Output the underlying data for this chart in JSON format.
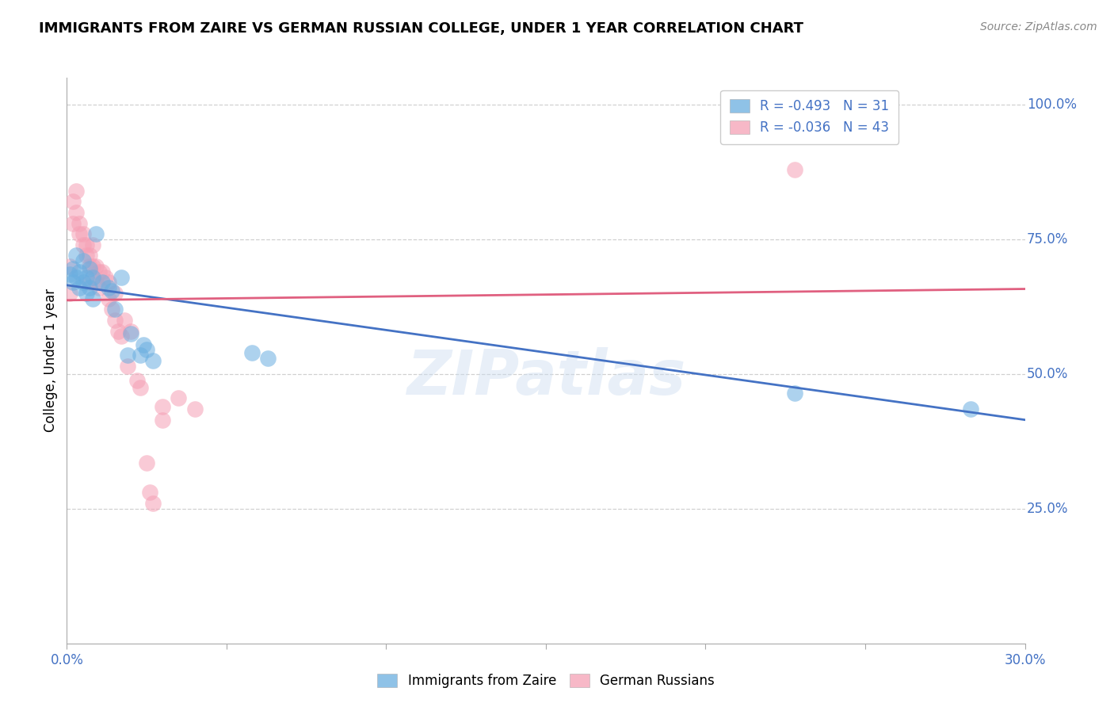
{
  "title": "IMMIGRANTS FROM ZAIRE VS GERMAN RUSSIAN COLLEGE, UNDER 1 YEAR CORRELATION CHART",
  "source": "Source: ZipAtlas.com",
  "ylabel": "College, Under 1 year",
  "right_yticks": [
    "100.0%",
    "75.0%",
    "50.0%",
    "25.0%"
  ],
  "right_ytick_vals": [
    1.0,
    0.75,
    0.5,
    0.25
  ],
  "legend_entries": [
    {
      "label": "R = -0.493   N = 31",
      "color": "#7eb6e8"
    },
    {
      "label": "R = -0.036   N = 43",
      "color": "#f4a0b4"
    }
  ],
  "legend_series": [
    "Immigrants from Zaire",
    "German Russians"
  ],
  "xmin": 0.0,
  "xmax": 0.3,
  "ymin": 0.0,
  "ymax": 1.05,
  "blue_line": {
    "x0": 0.0,
    "y0": 0.665,
    "x1": 0.3,
    "y1": 0.415
  },
  "pink_line": {
    "x0": 0.0,
    "y0": 0.637,
    "x1": 0.3,
    "y1": 0.658
  },
  "zaire_points": [
    [
      0.001,
      0.685
    ],
    [
      0.002,
      0.695
    ],
    [
      0.002,
      0.67
    ],
    [
      0.003,
      0.72
    ],
    [
      0.003,
      0.68
    ],
    [
      0.004,
      0.69
    ],
    [
      0.004,
      0.66
    ],
    [
      0.005,
      0.71
    ],
    [
      0.005,
      0.67
    ],
    [
      0.006,
      0.68
    ],
    [
      0.006,
      0.65
    ],
    [
      0.007,
      0.695
    ],
    [
      0.007,
      0.66
    ],
    [
      0.008,
      0.68
    ],
    [
      0.008,
      0.64
    ],
    [
      0.009,
      0.76
    ],
    [
      0.011,
      0.67
    ],
    [
      0.013,
      0.66
    ],
    [
      0.014,
      0.655
    ],
    [
      0.015,
      0.62
    ],
    [
      0.017,
      0.68
    ],
    [
      0.019,
      0.535
    ],
    [
      0.02,
      0.575
    ],
    [
      0.023,
      0.535
    ],
    [
      0.024,
      0.555
    ],
    [
      0.025,
      0.545
    ],
    [
      0.027,
      0.525
    ],
    [
      0.058,
      0.54
    ],
    [
      0.063,
      0.53
    ],
    [
      0.228,
      0.465
    ],
    [
      0.283,
      0.435
    ]
  ],
  "german_points": [
    [
      0.001,
      0.7
    ],
    [
      0.001,
      0.65
    ],
    [
      0.002,
      0.82
    ],
    [
      0.002,
      0.78
    ],
    [
      0.003,
      0.84
    ],
    [
      0.003,
      0.8
    ],
    [
      0.004,
      0.78
    ],
    [
      0.004,
      0.76
    ],
    [
      0.005,
      0.76
    ],
    [
      0.005,
      0.74
    ],
    [
      0.006,
      0.74
    ],
    [
      0.006,
      0.72
    ],
    [
      0.007,
      0.72
    ],
    [
      0.007,
      0.7
    ],
    [
      0.007,
      0.67
    ],
    [
      0.008,
      0.74
    ],
    [
      0.008,
      0.7
    ],
    [
      0.009,
      0.7
    ],
    [
      0.009,
      0.67
    ],
    [
      0.01,
      0.69
    ],
    [
      0.01,
      0.66
    ],
    [
      0.011,
      0.69
    ],
    [
      0.012,
      0.68
    ],
    [
      0.013,
      0.67
    ],
    [
      0.013,
      0.64
    ],
    [
      0.014,
      0.62
    ],
    [
      0.015,
      0.65
    ],
    [
      0.015,
      0.6
    ],
    [
      0.016,
      0.58
    ],
    [
      0.017,
      0.57
    ],
    [
      0.018,
      0.6
    ],
    [
      0.019,
      0.515
    ],
    [
      0.02,
      0.58
    ],
    [
      0.022,
      0.488
    ],
    [
      0.023,
      0.475
    ],
    [
      0.025,
      0.335
    ],
    [
      0.026,
      0.28
    ],
    [
      0.027,
      0.26
    ],
    [
      0.03,
      0.44
    ],
    [
      0.03,
      0.415
    ],
    [
      0.035,
      0.455
    ],
    [
      0.04,
      0.435
    ],
    [
      0.228,
      0.88
    ]
  ],
  "blue_color": "#6aaee0",
  "pink_color": "#f5a0b5",
  "bg_color": "#ffffff",
  "grid_color": "#d0d0d0",
  "title_fontsize": 13,
  "axis_color": "#4472c4",
  "watermark": "ZIPatlas"
}
